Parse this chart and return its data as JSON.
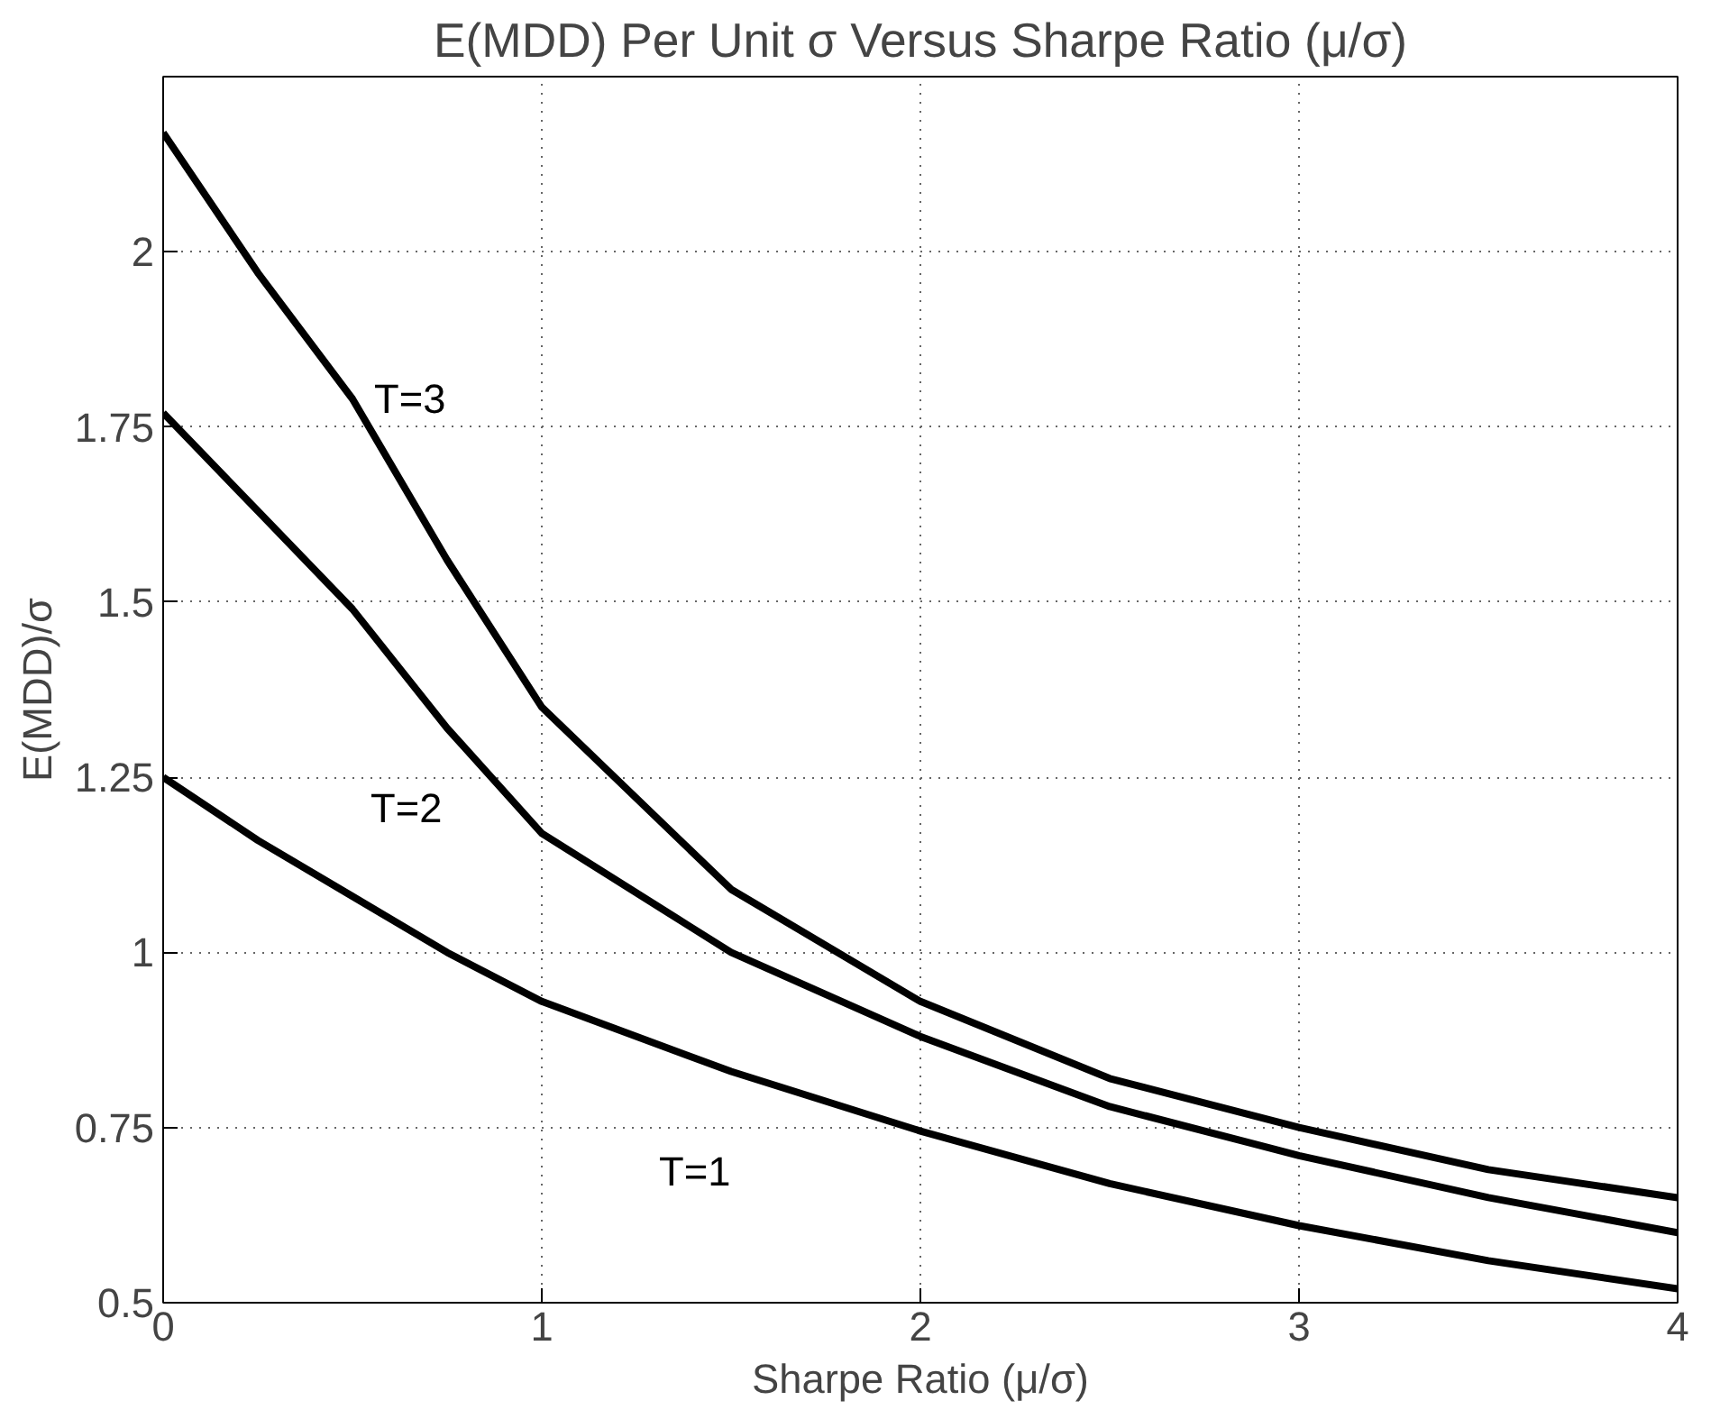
{
  "chart_data": {
    "type": "line",
    "title": "E(MDD) Per Unit σ Versus Sharpe Ratio (μ/σ)",
    "xlabel": "Sharpe Ratio (μ/σ)",
    "ylabel": "E(MDD)/σ",
    "x": [
      0,
      0.25,
      0.5,
      0.75,
      1,
      1.5,
      2,
      2.5,
      3,
      3.5,
      4
    ],
    "series": [
      {
        "name": "T=3",
        "color": "#000000",
        "values": [
          2.17,
          1.97,
          1.79,
          1.56,
          1.35,
          1.09,
          0.93,
          0.82,
          0.75,
          0.69,
          0.65
        ]
      },
      {
        "name": "T=2",
        "color": "#000000",
        "values": [
          1.77,
          1.63,
          1.49,
          1.32,
          1.17,
          1.0,
          0.88,
          0.78,
          0.71,
          0.65,
          0.6
        ]
      },
      {
        "name": "T=1",
        "color": "#000000",
        "values": [
          1.25,
          1.16,
          1.08,
          1.0,
          0.93,
          0.83,
          0.745,
          0.67,
          0.61,
          0.56,
          0.52
        ]
      }
    ],
    "xlim": [
      0,
      4
    ],
    "ylim": [
      0.5,
      2.25
    ],
    "xticks": [
      0,
      1,
      2,
      3,
      4
    ],
    "yticks": [
      0.5,
      0.75,
      1,
      1.25,
      1.5,
      1.75,
      2
    ],
    "grid": true,
    "marker": "none",
    "line_style": "solid"
  }
}
